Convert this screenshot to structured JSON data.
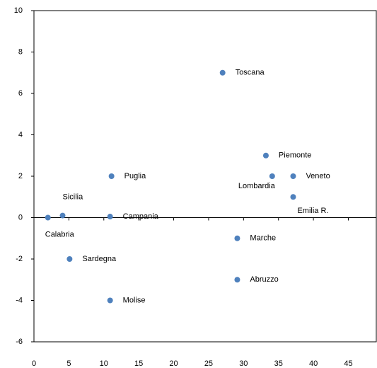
{
  "chart_data": {
    "type": "scatter",
    "series": [
      {
        "color": "#4f81bd",
        "labels": [
          "Toscana",
          "Piemonte",
          "Lombardia",
          "Veneto",
          "Emilia R.",
          "Puglia",
          "Sicilia",
          "Calabria",
          "Campania",
          "Marche",
          "Abruzzo",
          "Sardegna",
          "Molise"
        ],
        "x": [
          27,
          33.2,
          34.1,
          37.1,
          37.1,
          11.1,
          4.1,
          2.0,
          10.9,
          29.1,
          29.1,
          5.1,
          10.9
        ],
        "values": [
          7,
          3,
          2,
          2,
          1,
          2,
          0.1,
          0,
          0.05,
          -1,
          -3,
          -2,
          -4
        ]
      }
    ],
    "xlim": [
      0,
      49
    ],
    "xticks": [
      0,
      5,
      10,
      15,
      20,
      25,
      30,
      35,
      40,
      45
    ],
    "ylim": [
      -6,
      10
    ],
    "yticks": [
      -6,
      -4,
      -2,
      0,
      2,
      4,
      6,
      8,
      10
    ]
  }
}
